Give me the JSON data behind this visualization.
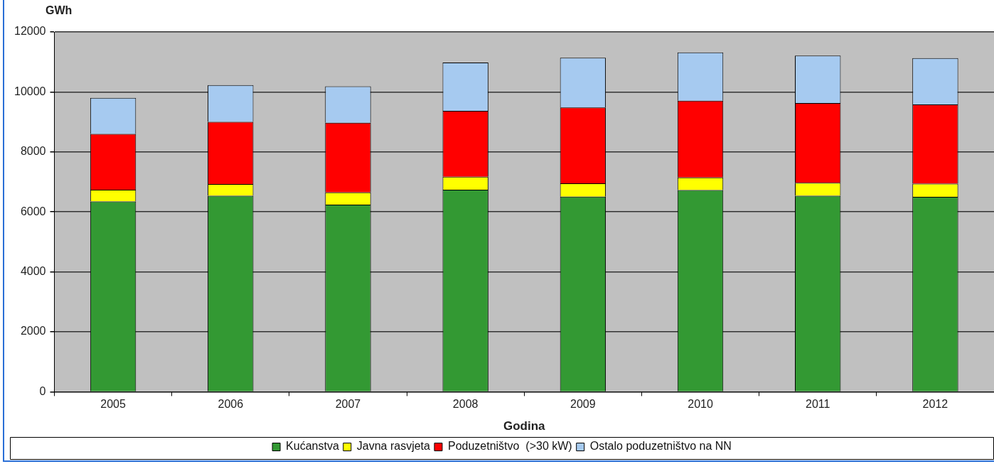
{
  "chart_data": {
    "type": "bar",
    "stacked": true,
    "xlabel": "Godina",
    "ylabel": "GWh",
    "categories": [
      "2005",
      "2006",
      "2007",
      "2008",
      "2009",
      "2010",
      "2011",
      "2012"
    ],
    "series": [
      {
        "name": "Kućanstva",
        "color": "#339933",
        "values": [
          6350,
          6540,
          6240,
          6740,
          6510,
          6730,
          6540,
          6500
        ]
      },
      {
        "name": "Javna rasvjeta",
        "color": "#ffff00",
        "values": [
          390,
          390,
          410,
          430,
          440,
          420,
          430,
          440
        ]
      },
      {
        "name": "Poduzetništvo  (>30 kW)",
        "color": "#ff0000",
        "values": [
          1860,
          2070,
          2320,
          2200,
          2530,
          2560,
          2660,
          2640
        ]
      },
      {
        "name": "Ostalo poduzetništvo na NN",
        "color": "#a6caf0",
        "values": [
          1200,
          1230,
          1220,
          1610,
          1660,
          1610,
          1580,
          1550
        ]
      }
    ],
    "ylim": [
      0,
      12000
    ],
    "yticks": [
      0,
      2000,
      4000,
      6000,
      8000,
      10000,
      12000
    ],
    "grid": "y",
    "legend": "bottom"
  }
}
